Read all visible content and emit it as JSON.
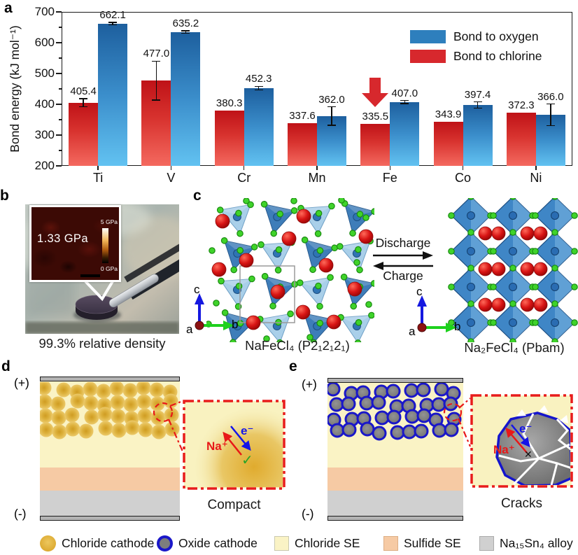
{
  "panels": {
    "a": "a",
    "b": "b",
    "c": "c",
    "d": "d",
    "e": "e"
  },
  "chart_data": {
    "type": "bar",
    "title": "",
    "ylabel": "Bond energy (kJ mol⁻¹)",
    "ylim": [
      200,
      700
    ],
    "yticks": [
      200,
      300,
      400,
      500,
      600,
      700
    ],
    "categories": [
      "Ti",
      "V",
      "Cr",
      "Mn",
      "Fe",
      "Co",
      "Ni"
    ],
    "series": [
      {
        "name": "Bond to chlorine",
        "color": "#d7282d",
        "values": [
          405.4,
          477.0,
          380.3,
          337.6,
          335.5,
          343.9,
          372.3
        ],
        "value_labels": [
          "405.4",
          "477.0",
          "380.3",
          "337.6",
          "335.5",
          "343.9",
          "372.3"
        ],
        "errors": [
          13,
          63,
          0,
          0,
          0,
          0,
          0
        ]
      },
      {
        "name": "Bond to oxygen",
        "color": "#2e7fbd",
        "values": [
          662.1,
          635.2,
          452.3,
          362.0,
          407.0,
          397.4,
          366.0
        ],
        "value_labels": [
          "662.1",
          "635.2",
          "452.3",
          "362.0",
          "407.0",
          "397.4",
          "366.0"
        ],
        "errors": [
          4,
          4,
          6,
          30,
          5,
          10,
          35
        ]
      }
    ],
    "legend": [
      {
        "label": "Bond to oxygen",
        "color": "#2e7fbd"
      },
      {
        "label": "Bond to chlorine",
        "color": "#d7282d"
      }
    ],
    "legend_position": "top-right",
    "grid": false,
    "annotation": {
      "shape": "down-arrow",
      "category": "Fe",
      "series": "Bond to chlorine",
      "color": "#d7282d"
    }
  },
  "panel_b": {
    "pressure": "1.33 GPa",
    "colorbar_max": "5 GPa",
    "colorbar_min": "0 GPa",
    "caption": "99.3% relative density"
  },
  "panel_c": {
    "discharge": "Discharge",
    "charge": "Charge",
    "left_caption": "NaFeCl₄ (P2₁2₁2₁)",
    "right_caption": "Na₂FeCl₄ (Pbam)",
    "axis_a": "a",
    "axis_b": "b",
    "axis_c": "c"
  },
  "panel_d": {
    "plus": "(+)",
    "minus": "(-)",
    "na_ion": "Na⁺",
    "electron": "e⁻",
    "allowed_icon": "✓",
    "caption": "Compact"
  },
  "panel_e": {
    "plus": "(+)",
    "minus": "(-)",
    "na_ion": "Na⁺",
    "electron": "e⁻",
    "blocked_icon": "✕",
    "caption": "Cracks"
  },
  "bottom_legend": {
    "items": [
      {
        "label": "Chloride cathode",
        "swatch": "circle",
        "color": "#ddab33"
      },
      {
        "label": "Oxide cathode",
        "swatch": "circle",
        "color": "#7d7d7d",
        "ring": "#1a17c9"
      },
      {
        "label": "Chloride SE",
        "swatch": "square",
        "color": "#faf3c5"
      },
      {
        "label": "Sulfide SE",
        "swatch": "square",
        "color": "#f6caa4"
      },
      {
        "label": "Na₁₅Sn₄ alloy",
        "swatch": "square",
        "color": "#d0d0d0"
      }
    ]
  },
  "colors": {
    "bar_oxygen_top": "#1d5f9e",
    "bar_oxygen_bottom": "#62c2f1",
    "bar_chlorine_top": "#bf1217",
    "bar_chlorine_bottom": "#f4695f",
    "chloride_cathode": "#ddab33",
    "oxide_cathode": "#7d7d7d",
    "oxide_ring_blue": "#1a17c9",
    "chloride_se": "#faf3c5",
    "sulfide_se": "#f6caa4",
    "alloy_gray": "#d0d0d0",
    "inset_border_red": "#e81c1c",
    "na_red": "#e81818",
    "electron_blue": "#1414e8"
  }
}
